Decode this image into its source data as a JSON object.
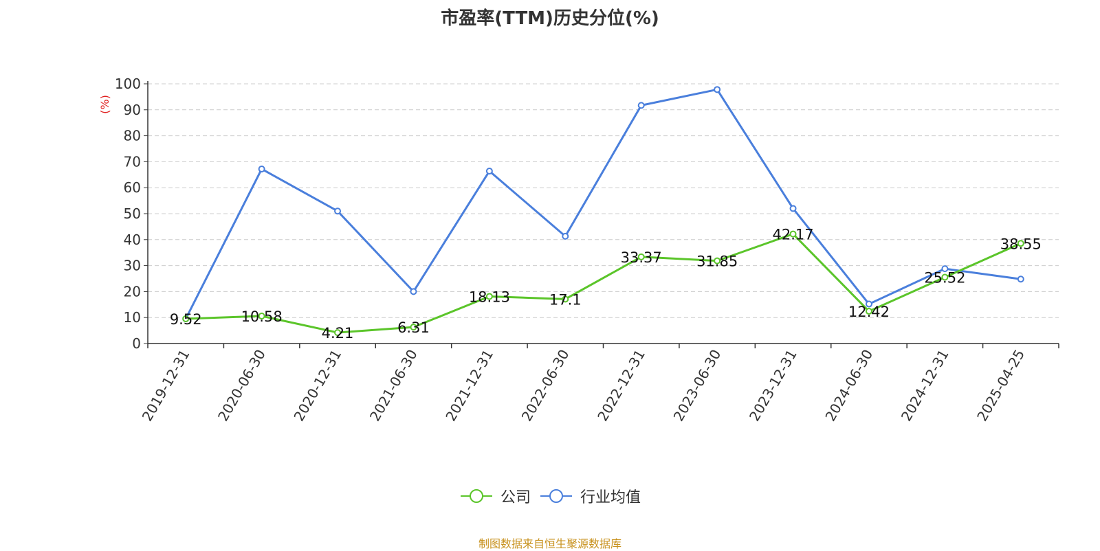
{
  "chart_data": {
    "type": "line",
    "title": "市盈率(TTM)历史分位(%)",
    "ylabel": "(%)",
    "xlabel": "",
    "categories": [
      "2019-12-31",
      "2020-06-30",
      "2020-12-31",
      "2021-06-30",
      "2021-12-31",
      "2022-06-30",
      "2022-12-31",
      "2023-06-30",
      "2023-12-31",
      "2024-06-30",
      "2024-12-31",
      "2025-04-25"
    ],
    "ylim": [
      0,
      100
    ],
    "yticks": [
      0,
      10,
      20,
      30,
      40,
      50,
      60,
      70,
      80,
      90,
      100
    ],
    "grid": true,
    "legend_position": "bottom",
    "series": [
      {
        "name": "公司",
        "color": "#5bc52a",
        "values": [
          9.52,
          10.58,
          4.21,
          6.31,
          18.13,
          17.1,
          33.37,
          31.85,
          42.17,
          12.42,
          25.52,
          38.55
        ],
        "labels": [
          "9.52",
          "10.58",
          "4.21",
          "6.31",
          "18.13",
          "17.1",
          "33.37",
          "31.85",
          "42.17",
          "12.42",
          "25.52",
          "38.55"
        ]
      },
      {
        "name": "行业均值",
        "color": "#4a7fdc",
        "values": [
          9.5,
          67.2,
          51.0,
          20.0,
          66.4,
          41.3,
          91.7,
          97.8,
          52.0,
          15.2,
          28.8,
          24.8
        ]
      }
    ]
  },
  "source_text": "制图数据来自恒生聚源数据库",
  "colors": {
    "source": "#c8921e",
    "ylabel": "#e02020",
    "axis": "#333333",
    "grid": "#cccccc"
  }
}
